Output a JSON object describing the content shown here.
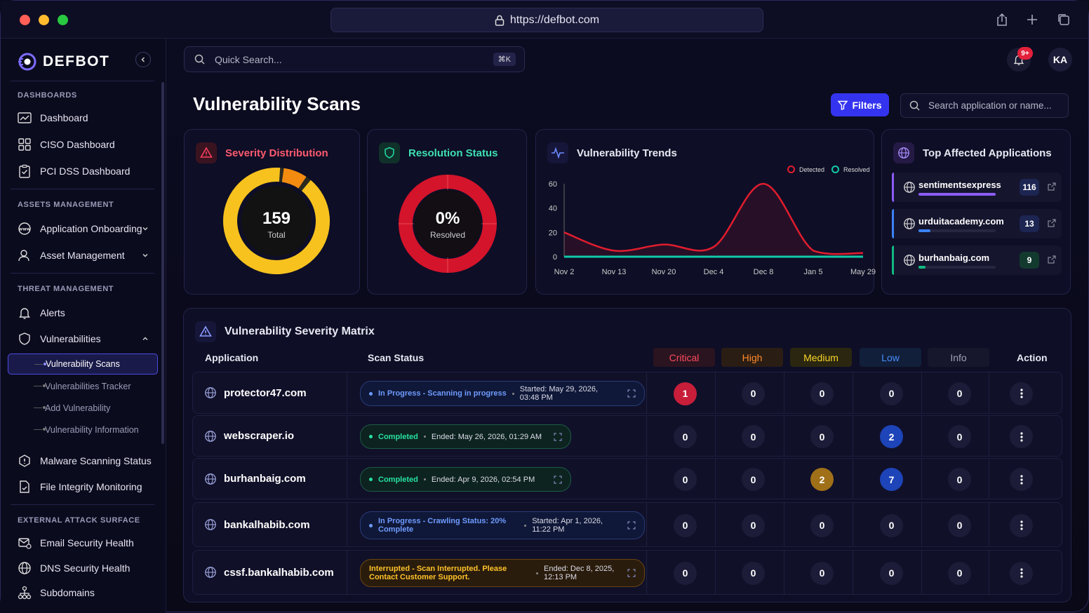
{
  "browser": {
    "url": "https://defbot.com"
  },
  "brand": {
    "name": "DEFBOT"
  },
  "sidebar": {
    "sections": [
      {
        "label": "DASHBOARDS"
      },
      {
        "label": "ASSETS MANAGEMENT"
      },
      {
        "label": "THREAT MANAGEMENT"
      },
      {
        "label": "EXTERNAL ATTACK SURFACE"
      }
    ],
    "items": {
      "dashboard": "Dashboard",
      "ciso": "CISO Dashboard",
      "pci": "PCI DSS Dashboard",
      "app_onboarding": "Application Onboarding",
      "asset_mgmt": "Asset Management",
      "alerts": "Alerts",
      "vulnerabilities": "Vulnerabilities",
      "malware": "Malware Scanning Status",
      "file_integrity": "File Integrity Monitoring",
      "email_security": "Email Security Health",
      "dns_security": "DNS Security Health",
      "subdomains": "Subdomains"
    },
    "sub_items": [
      {
        "label": "Vulnerability Scans"
      },
      {
        "label": "Vulnerabilities Tracker"
      },
      {
        "label": "Add Vulnerability"
      },
      {
        "label": "Vulnerability Information"
      }
    ]
  },
  "topbar": {
    "search_placeholder": "Quick Search...",
    "shortcut": "⌘K",
    "notifications_badge": "9+",
    "avatar_initials": "KA"
  },
  "page": {
    "title": "Vulnerability Scans",
    "filters_label": "Filters",
    "search_placeholder": "Search application or name..."
  },
  "cards": {
    "severity": {
      "title": "Severity Distribution",
      "total": "159",
      "total_label": "Total"
    },
    "resolution": {
      "title": "Resolution Status",
      "value": "0%",
      "label": "Resolved"
    },
    "trends": {
      "title": "Vulnerability Trends",
      "legend_detected": "Detected",
      "legend_resolved": "Resolved"
    },
    "top_apps": {
      "title": "Top Affected Applications",
      "items": [
        {
          "name": "sentimentsexpress",
          "count": "116",
          "share": 1.0,
          "color": "#8b5cf6"
        },
        {
          "name": "urduitacademy.com",
          "count": "13",
          "share": 0.15,
          "color": "#3b82f6"
        },
        {
          "name": "burhanbaig.com",
          "count": "9",
          "share": 0.09,
          "color": "#10b981"
        }
      ]
    }
  },
  "chart_data": {
    "type": "line",
    "categories": [
      "Nov 2",
      "Nov 13",
      "Nov 20",
      "Dec 4",
      "Dec 8",
      "Jan 5",
      "May 29"
    ],
    "ylim": [
      0,
      60
    ],
    "yticks": [
      "0",
      "20",
      "40",
      "60"
    ],
    "series": [
      {
        "name": "Detected",
        "color": "#e11d2e",
        "values": [
          20,
          5,
          10,
          8,
          60,
          5,
          3
        ]
      },
      {
        "name": "Resolved",
        "color": "#10c9a8",
        "values": [
          0,
          0,
          0,
          0,
          0,
          0,
          0
        ]
      }
    ]
  },
  "matrix": {
    "title": "Vulnerability Severity Matrix",
    "headers": {
      "application": "Application",
      "scan_status": "Scan Status",
      "critical": "Critical",
      "high": "High",
      "medium": "Medium",
      "low": "Low",
      "info": "Info",
      "action": "Action"
    },
    "rows": [
      {
        "app": "protector47.com",
        "status": "In Progress - Scanning in progress",
        "time": "Started: May 29, 2026, 03:48 PM",
        "kind": "progress",
        "critical": "1",
        "high": "0",
        "medium": "0",
        "low": "0",
        "info": "0"
      },
      {
        "app": "webscraper.io",
        "status": "Completed",
        "time": "Ended: May 26, 2026, 01:29 AM",
        "kind": "completed",
        "critical": "0",
        "high": "0",
        "medium": "0",
        "low": "2",
        "info": "0"
      },
      {
        "app": "burhanbaig.com",
        "status": "Completed",
        "time": "Ended: Apr 9, 2026, 02:54 PM",
        "kind": "completed",
        "critical": "0",
        "high": "0",
        "medium": "2",
        "low": "7",
        "info": "0"
      },
      {
        "app": "bankalhabib.com",
        "status": "In Progress - Crawling Status: 20% Complete",
        "time": "Started: Apr 1, 2026, 11:22 PM",
        "kind": "progress",
        "critical": "0",
        "high": "0",
        "medium": "0",
        "low": "0",
        "info": "0"
      },
      {
        "app": "cssf.bankalhabib.com",
        "status": "Interrupted - Scan Interrupted. Please Contact Customer Support.",
        "time": "Ended: Dec 8, 2025, 12:13 PM",
        "kind": "interrupted",
        "critical": "0",
        "high": "0",
        "medium": "0",
        "low": "0",
        "info": "0"
      }
    ]
  }
}
